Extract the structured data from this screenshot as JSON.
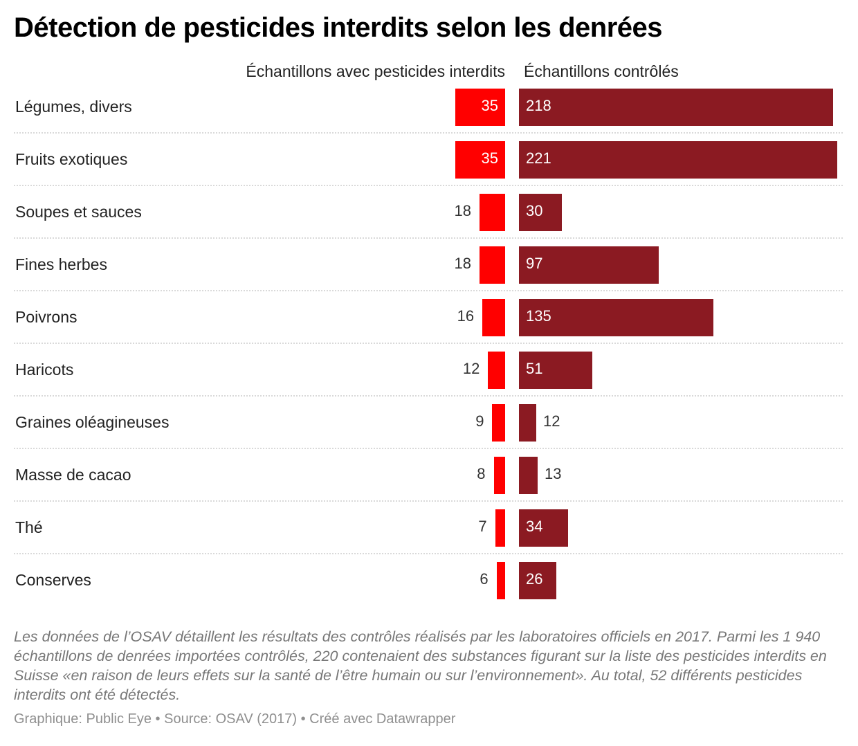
{
  "title": "Détection de pesticides interdits selon les denrées",
  "column_left_label": "Échantillons avec pesticides interdits",
  "column_right_label": "Échantillons contrôlés",
  "note": "Les données de l’OSAV détaillent les résultats des contrôles réalisés par les laboratoires officiels en 2017. Parmi les 1 940 échantillons de denrées importées contrôlés, 220 contenaient des substances figurant sur la liste des pesticides interdits en Suisse «en raison de leurs effets sur la santé de l’être humain ou sur l’environnement». Au total, 52 différents pesticides interdits ont été détectés.",
  "footer": "Graphique: Public Eye • Source: OSAV (2017) • Créé avec Datawrapper",
  "colors": {
    "left_bar": "#ff0000",
    "right_bar": "#8b1a22"
  },
  "chart_data": {
    "type": "bar",
    "title": "Détection de pesticides interdits selon les denrées",
    "categories": [
      "Légumes, divers",
      "Fruits exotiques",
      "Soupes et sauces",
      "Fines herbes",
      "Poivrons",
      "Haricots",
      "Graines oléagineuses",
      "Masse de cacao",
      "Thé",
      "Conserves"
    ],
    "series": [
      {
        "name": "Échantillons avec pesticides interdits",
        "values": [
          35,
          35,
          18,
          18,
          16,
          12,
          9,
          8,
          7,
          6
        ]
      },
      {
        "name": "Échantillons contrôlés",
        "values": [
          218,
          221,
          30,
          97,
          135,
          51,
          12,
          13,
          34,
          26
        ]
      }
    ],
    "grid": false
  }
}
